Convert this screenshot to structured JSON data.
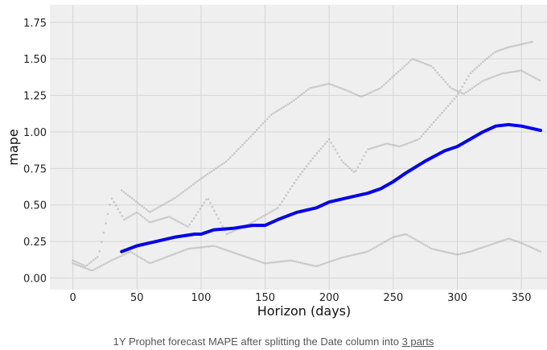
{
  "chart_data": {
    "type": "scatter",
    "title": "",
    "xlabel": "Horizon (days)",
    "ylabel": "mape",
    "xlim": [
      -18,
      370
    ],
    "ylim": [
      -0.08,
      1.87
    ],
    "xticks": [
      "0",
      "50",
      "100",
      "150",
      "200",
      "250",
      "300",
      "350"
    ],
    "xtick_values": [
      0,
      50,
      100,
      150,
      200,
      250,
      300,
      350
    ],
    "yticks": [
      "0.00",
      "0.25",
      "0.50",
      "0.75",
      "1.00",
      "1.25",
      "1.50",
      "1.75"
    ],
    "ytick_values": [
      0.0,
      0.25,
      0.5,
      0.75,
      1.0,
      1.25,
      1.5,
      1.75
    ],
    "grid": true,
    "colors": {
      "background": "#efefef",
      "grid": "#d6d6d6",
      "mean_line": "#0000ee",
      "points": "#9a9a9a"
    },
    "series": [
      {
        "kind": "line",
        "x": [
          38,
          50,
          65,
          80,
          95,
          100,
          110,
          125,
          140,
          150,
          160,
          175,
          190,
          200,
          215,
          230,
          240,
          250,
          260,
          275,
          290,
          300,
          310,
          320,
          330,
          340,
          350,
          365
        ],
        "y": [
          0.18,
          0.22,
          0.25,
          0.28,
          0.3,
          0.3,
          0.33,
          0.34,
          0.36,
          0.36,
          0.4,
          0.45,
          0.48,
          0.52,
          0.55,
          0.58,
          0.61,
          0.66,
          0.72,
          0.8,
          0.87,
          0.9,
          0.95,
          1.0,
          1.04,
          1.05,
          1.04,
          1.01
        ]
      },
      {
        "kind": "points",
        "x": [
          38,
          60,
          80,
          100,
          120,
          140,
          155,
          170,
          185,
          200,
          215,
          225,
          240,
          255,
          265,
          280,
          295,
          305,
          320,
          335,
          350,
          365
        ],
        "y": [
          0.6,
          0.45,
          0.55,
          0.68,
          0.8,
          0.98,
          1.12,
          1.2,
          1.3,
          1.33,
          1.28,
          1.24,
          1.3,
          1.42,
          1.5,
          1.45,
          1.3,
          1.26,
          1.35,
          1.4,
          1.42,
          1.35
        ]
      },
      {
        "kind": "points",
        "x": [
          0,
          10,
          20,
          30,
          40,
          50,
          60,
          75,
          90,
          105,
          120,
          140,
          160,
          175,
          190,
          200,
          210,
          220,
          230,
          245,
          255,
          270,
          285,
          300,
          310,
          320,
          330,
          340,
          350,
          360
        ],
        "y": [
          0.12,
          0.08,
          0.15,
          0.55,
          0.4,
          0.45,
          0.38,
          0.42,
          0.35,
          0.55,
          0.3,
          0.38,
          0.48,
          0.68,
          0.85,
          0.95,
          0.8,
          0.72,
          0.88,
          0.92,
          0.9,
          0.95,
          1.1,
          1.25,
          1.4,
          1.48,
          1.55,
          1.58,
          1.6,
          1.62
        ]
      },
      {
        "kind": "points",
        "x": [
          0,
          15,
          30,
          45,
          60,
          75,
          90,
          110,
          130,
          150,
          170,
          190,
          210,
          230,
          250,
          260,
          280,
          300,
          310,
          330,
          340,
          350,
          365
        ],
        "y": [
          0.1,
          0.05,
          0.12,
          0.18,
          0.1,
          0.15,
          0.2,
          0.22,
          0.16,
          0.1,
          0.12,
          0.08,
          0.14,
          0.18,
          0.28,
          0.3,
          0.2,
          0.16,
          0.18,
          0.24,
          0.27,
          0.24,
          0.18
        ]
      }
    ]
  },
  "caption": {
    "text": "1Y Prophet forecast MAPE after splitting the Date column into",
    "link": "3 parts"
  }
}
